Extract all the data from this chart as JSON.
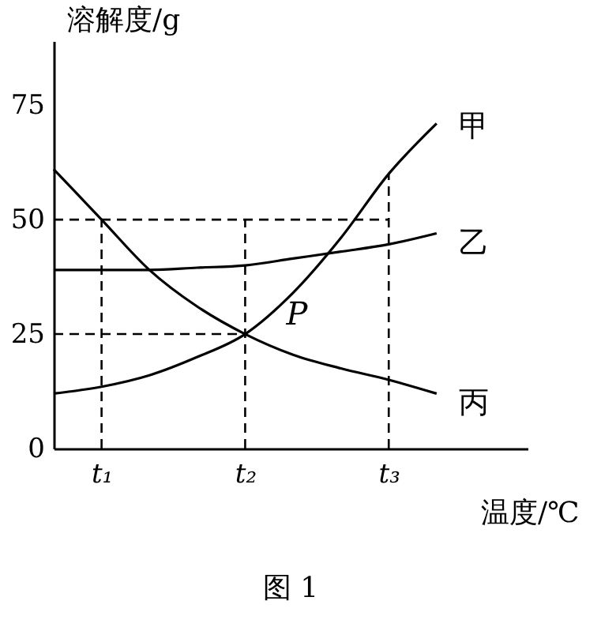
{
  "chart_data": {
    "type": "line",
    "ylabel": "溶解度/g",
    "xlabel": "温度/℃",
    "ylim": [
      0,
      89
    ],
    "categories": [
      null,
      "t₁",
      null,
      null,
      "t₂",
      null,
      null,
      "t₃",
      null
    ],
    "yticks": [
      0,
      25,
      50,
      75
    ],
    "grid": false,
    "marker": "none",
    "series": [
      {
        "name": "甲",
        "color": "#000000",
        "line_style": "solid",
        "values": [
          12,
          13.5,
          16,
          20,
          25,
          34,
          46,
          60,
          71
        ]
      },
      {
        "name": "乙",
        "color": "#000000",
        "line_style": "solid",
        "values": [
          39,
          39,
          39,
          39.5,
          40,
          41.5,
          43,
          44.6,
          47
        ]
      },
      {
        "name": "丙",
        "color": "#000000",
        "line_style": "solid",
        "values": [
          61,
          50,
          39,
          31,
          25,
          20.5,
          17.5,
          15,
          12
        ]
      },
      {
        "color": "#000000",
        "line_style": "dashed",
        "values": [
          50,
          50,
          50,
          50,
          50,
          50,
          50,
          50,
          null
        ]
      },
      {
        "color": "#000000",
        "line_style": "dashed",
        "values": [
          25,
          25,
          25,
          25,
          25,
          null,
          null,
          null,
          null
        ]
      }
    ],
    "ref_lines": [
      {
        "axis": "x",
        "value": "t₁",
        "color": "#000000",
        "line_style": "dashed"
      },
      {
        "axis": "x",
        "value": "t₂",
        "color": "#000000",
        "line_style": "dashed"
      },
      {
        "axis": "x",
        "value": "t₃",
        "color": "#000000",
        "line_style": "dashed"
      }
    ],
    "annotations": [
      {
        "text": "P",
        "x": "t₂",
        "y": 25
      },
      "图 1"
    ]
  }
}
